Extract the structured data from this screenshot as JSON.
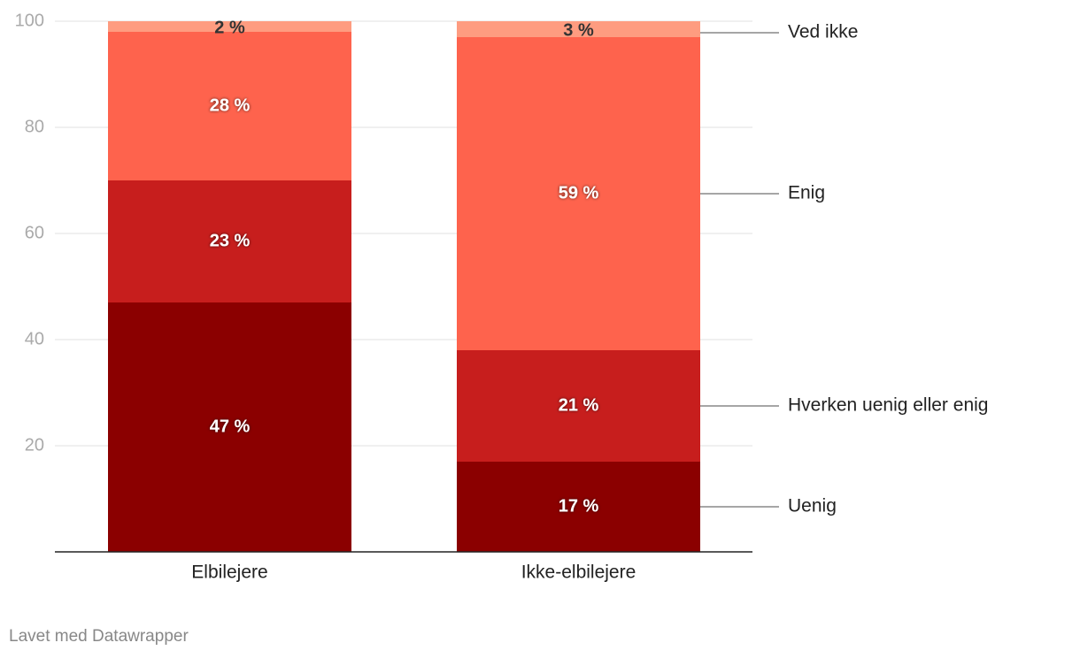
{
  "chart_data": {
    "type": "bar",
    "stacked": true,
    "categories": [
      "Elbilejere",
      "Ikke-elbilejere"
    ],
    "series": [
      {
        "name": "Uenig",
        "color": "#8b0000",
        "values": [
          47,
          17
        ],
        "value_labels": [
          "47 %",
          "17 %"
        ]
      },
      {
        "name": "Hverken uenig eller enig",
        "color": "#c71e1d",
        "values": [
          23,
          21
        ],
        "value_labels": [
          "23 %",
          "21 %"
        ]
      },
      {
        "name": "Enig",
        "color": "#fe634d",
        "values": [
          28,
          59
        ],
        "value_labels": [
          "28 %",
          "59 %"
        ]
      },
      {
        "name": "Ved ikke",
        "color": "#fe9c80",
        "values": [
          2,
          3
        ],
        "value_labels": [
          "2 %",
          "3 %"
        ]
      }
    ],
    "ylim": [
      0,
      100
    ],
    "yticks": [
      20,
      40,
      60,
      80,
      100
    ],
    "grid": true,
    "source": "Lavet med Datawrapper"
  }
}
